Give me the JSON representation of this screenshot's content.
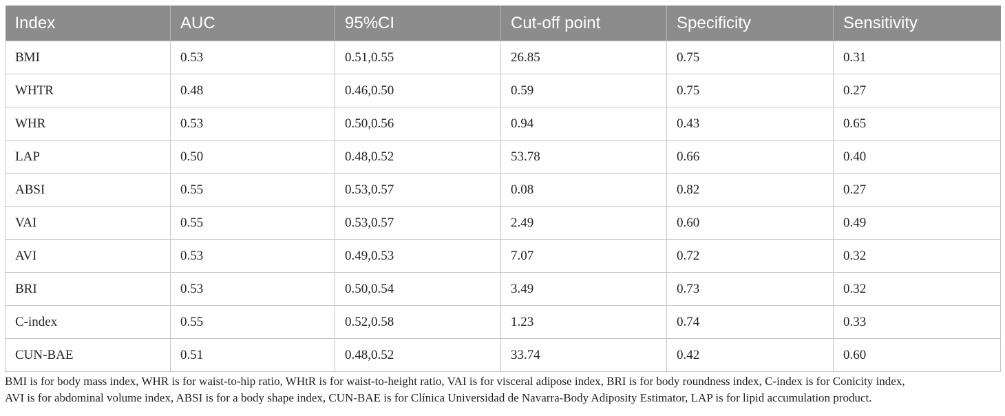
{
  "table": {
    "headers": [
      "Index",
      "AUC",
      "95%CI",
      "Cut-off point",
      "Specificity",
      "Sensitivity"
    ],
    "rows": [
      [
        "BMI",
        "0.53",
        "0.51,0.55",
        "26.85",
        "0.75",
        "0.31"
      ],
      [
        "WHTR",
        "0.48",
        "0.46,0.50",
        "0.59",
        "0.75",
        "0.27"
      ],
      [
        "WHR",
        "0.53",
        "0.50,0.56",
        "0.94",
        "0.43",
        "0.65"
      ],
      [
        "LAP",
        "0.50",
        "0.48,0.52",
        "53.78",
        "0.66",
        "0.40"
      ],
      [
        "ABSI",
        "0.55",
        "0.53,0.57",
        "0.08",
        "0.82",
        "0.27"
      ],
      [
        "VAI",
        "0.55",
        "0.53,0.57",
        "2.49",
        "0.60",
        "0.49"
      ],
      [
        "AVI",
        "0.53",
        "0.49,0.53",
        "7.07",
        "0.72",
        "0.32"
      ],
      [
        "BRI",
        "0.53",
        "0.50,0.54",
        "3.49",
        "0.73",
        "0.32"
      ],
      [
        "C-index",
        "0.55",
        "0.52,0.58",
        "1.23",
        "0.74",
        "0.33"
      ],
      [
        "CUN-BAE",
        "0.51",
        "0.48,0.52",
        "33.74",
        "0.42",
        "0.60"
      ]
    ]
  },
  "footnote": {
    "line1": "BMI is for body mass index, WHR is for waist-to-hip ratio, WHtR is for waist-to-height ratio, VAI is for visceral adipose index, BRI is for body roundness index, C-index is for Conicity index,",
    "line2": "AVI is for abdominal volume index, ABSI is for a body shape index, CUN-BAE is for Clínica Universidad de Navarra-Body Adiposity Estimator, LAP is for lipid accumulation product."
  },
  "colors": {
    "header_bg": "#8c8c8c",
    "header_text": "#ffffff",
    "grid": "#c7c7c7",
    "body_text": "#222222"
  }
}
